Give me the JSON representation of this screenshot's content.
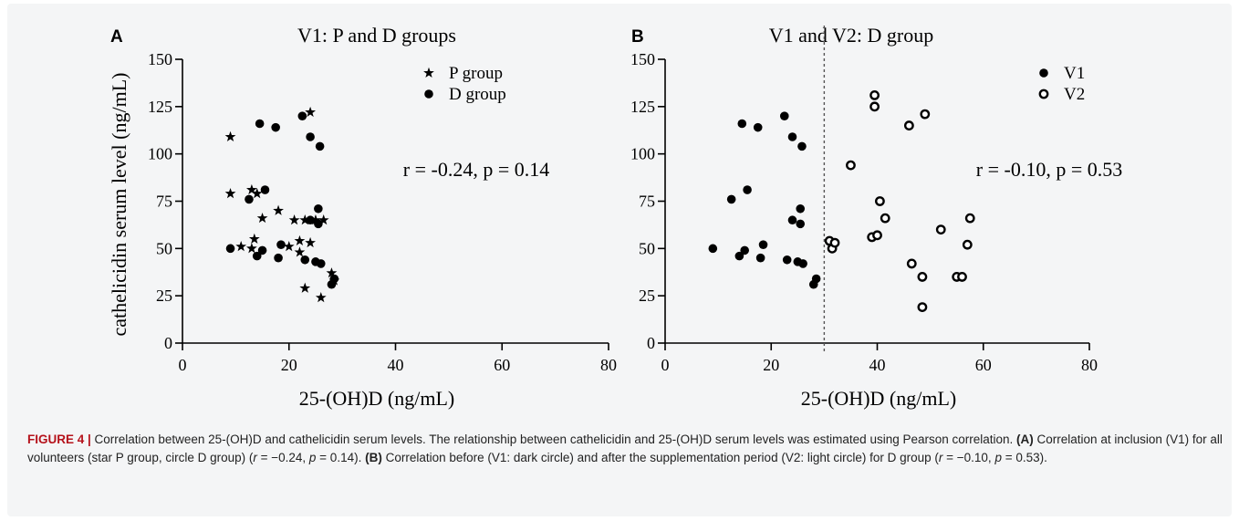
{
  "figure": {
    "caption": {
      "label": "FIGURE 4 |",
      "s1": " Correlation between 25-(OH)D and cathelicidin serum levels. The relationship between cathelicidin and 25-(OH)D serum levels was estimated using Pearson correlation. ",
      "ref_a": "(A)",
      "s2": " Correlation at inclusion (V1) for all volunteers (star P group, circle D group) (",
      "r_sym": "r",
      "r_a": " = −0.24, ",
      "p_sym": "p",
      "p_a": " = 0.14). ",
      "ref_b": "(B)",
      "s3": " Correlation before (V1: dark circle) and after the supplementation period (V2: light circle) for D group (",
      "r_b": " = −0.10, ",
      "p_b": " = 0.53)."
    }
  },
  "chart_data": [
    {
      "type": "scatter",
      "panel_label": "A",
      "title": "V1: P and D groups",
      "xlabel": "25-(OH)D (ng/mL)",
      "ylabel": "cathelicidin serum level (ng/mL)",
      "xlim": [
        0,
        80
      ],
      "ylim": [
        0,
        150
      ],
      "xticks": [
        0,
        20,
        40,
        60,
        80
      ],
      "yticks": [
        0,
        25,
        50,
        75,
        100,
        125,
        150
      ],
      "grid": false,
      "legend": "top-right",
      "annotation": "r = -0.24, p = 0.14",
      "series": [
        {
          "name": "P group",
          "marker": "star",
          "points": [
            [
              9,
              109
            ],
            [
              9,
              79
            ],
            [
              11,
              51
            ],
            [
              13,
              81
            ],
            [
              13,
              50
            ],
            [
              13.5,
              55
            ],
            [
              14,
              79
            ],
            [
              15,
              66
            ],
            [
              18,
              70
            ],
            [
              20,
              51
            ],
            [
              21,
              65
            ],
            [
              22,
              48
            ],
            [
              22,
              54
            ],
            [
              23,
              65
            ],
            [
              23,
              29
            ],
            [
              24,
              122
            ],
            [
              24,
              53
            ],
            [
              25,
              65
            ],
            [
              26,
              24
            ],
            [
              26.5,
              65
            ],
            [
              28,
              37
            ],
            [
              28.5,
              33
            ]
          ]
        },
        {
          "name": "D group",
          "marker": "circle",
          "points": [
            [
              9,
              50
            ],
            [
              12.5,
              76
            ],
            [
              14,
              46
            ],
            [
              14.5,
              116
            ],
            [
              15,
              49
            ],
            [
              15.5,
              81
            ],
            [
              17.5,
              114
            ],
            [
              18,
              45
            ],
            [
              18.5,
              52
            ],
            [
              22.5,
              120
            ],
            [
              23,
              44
            ],
            [
              24,
              109
            ],
            [
              24,
              65
            ],
            [
              25,
              43
            ],
            [
              25.5,
              63
            ],
            [
              25.5,
              71
            ],
            [
              25.8,
              104
            ],
            [
              26,
              42
            ],
            [
              28,
              31
            ],
            [
              28.5,
              34
            ]
          ]
        }
      ]
    },
    {
      "type": "scatter",
      "panel_label": "B",
      "title": "V1 and V2: D group",
      "xlabel": "25-(OH)D (ng/mL)",
      "xlim": [
        0,
        80
      ],
      "ylim": [
        0,
        150
      ],
      "xticks": [
        0,
        20,
        40,
        60,
        80
      ],
      "yticks": [
        0,
        25,
        50,
        75,
        100,
        125,
        150
      ],
      "grid": false,
      "legend": "top-right",
      "annotation": "r = -0.10, p = 0.53",
      "reference_line_x": 30,
      "series": [
        {
          "name": "V1",
          "marker": "filled-circle",
          "points": [
            [
              9,
              50
            ],
            [
              12.5,
              76
            ],
            [
              14,
              46
            ],
            [
              14.5,
              116
            ],
            [
              15,
              49
            ],
            [
              15.5,
              81
            ],
            [
              17.5,
              114
            ],
            [
              18,
              45
            ],
            [
              18.5,
              52
            ],
            [
              22.5,
              120
            ],
            [
              23,
              44
            ],
            [
              24,
              109
            ],
            [
              24,
              65
            ],
            [
              25,
              43
            ],
            [
              25.5,
              63
            ],
            [
              25.5,
              71
            ],
            [
              25.8,
              104
            ],
            [
              26,
              42
            ],
            [
              28,
              31
            ],
            [
              28.5,
              34
            ]
          ]
        },
        {
          "name": "V2",
          "marker": "open-circle",
          "points": [
            [
              31,
              54
            ],
            [
              31.5,
              50
            ],
            [
              32,
              53
            ],
            [
              35,
              94
            ],
            [
              39,
              56
            ],
            [
              39.5,
              125
            ],
            [
              39.5,
              131
            ],
            [
              40,
              57
            ],
            [
              40.5,
              75
            ],
            [
              41.5,
              66
            ],
            [
              46,
              115
            ],
            [
              46.5,
              42
            ],
            [
              48.5,
              19
            ],
            [
              48.5,
              35
            ],
            [
              49,
              121
            ],
            [
              52,
              60
            ],
            [
              55,
              35
            ],
            [
              56,
              35
            ],
            [
              57,
              52
            ],
            [
              57.5,
              66
            ]
          ]
        }
      ]
    }
  ]
}
